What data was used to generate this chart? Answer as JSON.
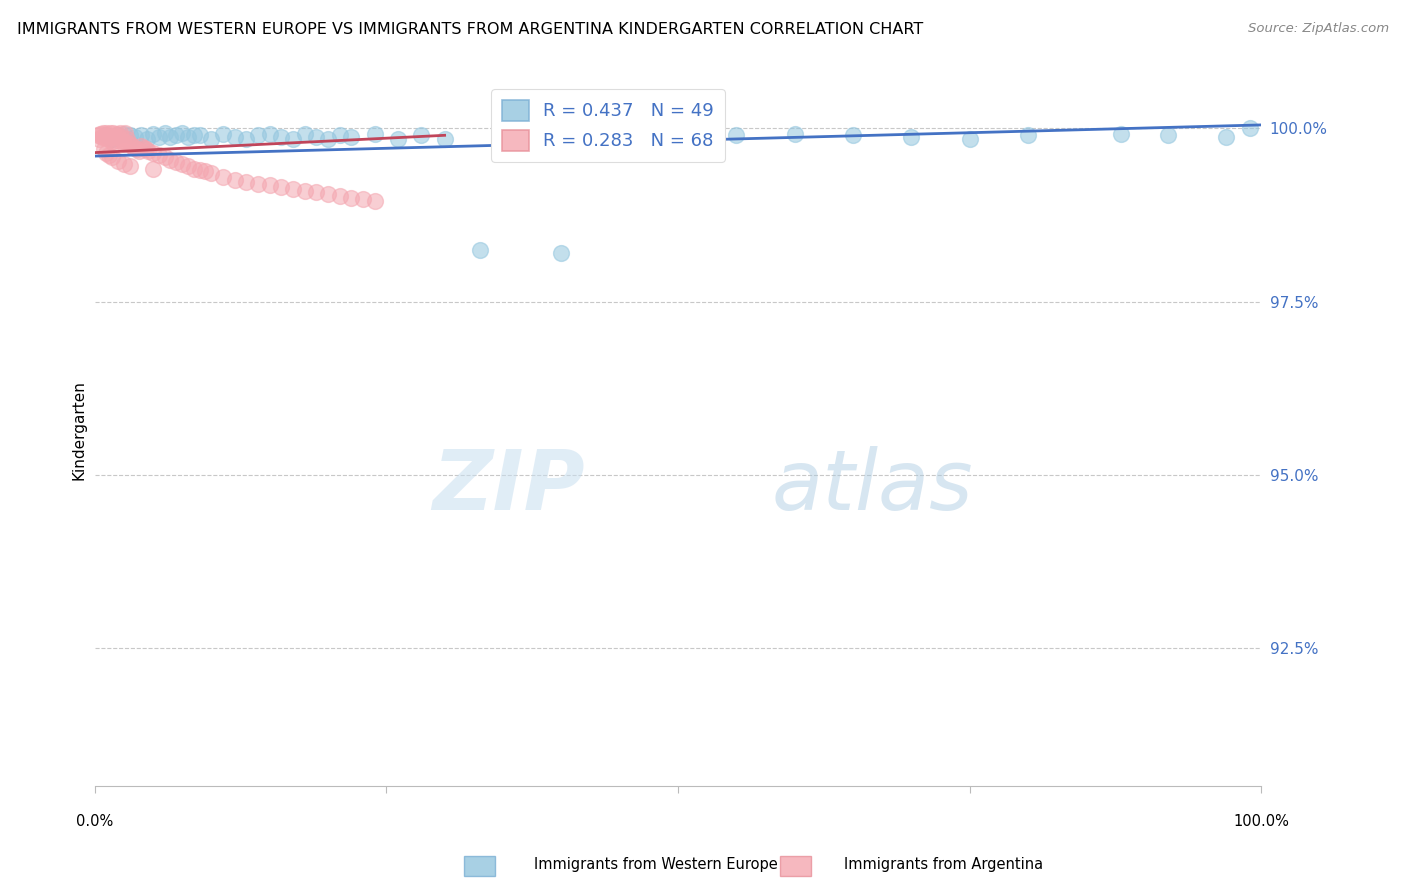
{
  "title": "IMMIGRANTS FROM WESTERN EUROPE VS IMMIGRANTS FROM ARGENTINA KINDERGARTEN CORRELATION CHART",
  "source": "Source: ZipAtlas.com",
  "ylabel": "Kindergarten",
  "ytick_values": [
    1.0,
    0.975,
    0.95,
    0.925
  ],
  "xlim": [
    0.0,
    1.0
  ],
  "ylim": [
    0.905,
    1.008
  ],
  "legend_blue_label": "Immigrants from Western Europe",
  "legend_pink_label": "Immigrants from Argentina",
  "R_blue": 0.437,
  "N_blue": 49,
  "R_pink": 0.283,
  "N_pink": 68,
  "blue_color": "#92c5de",
  "pink_color": "#f4a6b0",
  "line_blue": "#4472c4",
  "line_pink": "#c0455a",
  "ytick_color": "#4472c4",
  "blue_x": [
    0.01,
    0.015,
    0.02,
    0.025,
    0.03,
    0.035,
    0.04,
    0.045,
    0.05,
    0.055,
    0.06,
    0.065,
    0.07,
    0.075,
    0.08,
    0.085,
    0.09,
    0.1,
    0.11,
    0.12,
    0.13,
    0.14,
    0.15,
    0.16,
    0.17,
    0.18,
    0.19,
    0.2,
    0.21,
    0.22,
    0.24,
    0.26,
    0.28,
    0.3,
    0.33,
    0.36,
    0.4,
    0.44,
    0.48,
    0.55,
    0.6,
    0.65,
    0.7,
    0.75,
    0.8,
    0.88,
    0.92,
    0.97,
    0.99
  ],
  "blue_y": [
    0.999,
    0.9985,
    0.999,
    0.9992,
    0.999,
    0.9988,
    0.999,
    0.9985,
    0.9992,
    0.9988,
    0.9993,
    0.9987,
    0.999,
    0.9993,
    0.9988,
    0.9991,
    0.999,
    0.9985,
    0.9992,
    0.9988,
    0.9985,
    0.999,
    0.9992,
    0.9987,
    0.9985,
    0.9992,
    0.9988,
    0.9985,
    0.999,
    0.9988,
    0.9992,
    0.9985,
    0.999,
    0.9985,
    0.9825,
    0.9992,
    0.982,
    0.9992,
    0.9985,
    0.999,
    0.9992,
    0.999,
    0.9988,
    0.9985,
    0.999,
    0.9992,
    0.999,
    0.9988,
    1.0
  ],
  "pink_x": [
    0.003,
    0.004,
    0.005,
    0.006,
    0.007,
    0.008,
    0.009,
    0.01,
    0.011,
    0.012,
    0.013,
    0.014,
    0.015,
    0.016,
    0.017,
    0.018,
    0.019,
    0.02,
    0.021,
    0.022,
    0.023,
    0.024,
    0.025,
    0.026,
    0.027,
    0.028,
    0.03,
    0.032,
    0.034,
    0.036,
    0.038,
    0.04,
    0.042,
    0.044,
    0.046,
    0.05,
    0.055,
    0.06,
    0.065,
    0.07,
    0.075,
    0.08,
    0.085,
    0.09,
    0.095,
    0.1,
    0.11,
    0.12,
    0.13,
    0.14,
    0.15,
    0.16,
    0.17,
    0.18,
    0.19,
    0.2,
    0.21,
    0.22,
    0.23,
    0.24,
    0.008,
    0.01,
    0.012,
    0.015,
    0.02,
    0.025,
    0.03,
    0.05
  ],
  "pink_y": [
    0.999,
    0.9985,
    0.9992,
    0.9988,
    0.9993,
    0.9987,
    0.999,
    0.9993,
    0.9988,
    0.9985,
    0.9993,
    0.9988,
    0.998,
    0.9993,
    0.9988,
    0.9983,
    0.9992,
    0.9987,
    0.9982,
    0.9993,
    0.9988,
    0.9982,
    0.9978,
    0.9993,
    0.998,
    0.9985,
    0.9978,
    0.9975,
    0.9972,
    0.997,
    0.9968,
    0.9975,
    0.9972,
    0.997,
    0.9968,
    0.9965,
    0.9962,
    0.9958,
    0.9955,
    0.9952,
    0.9948,
    0.9945,
    0.9942,
    0.994,
    0.9938,
    0.9935,
    0.993,
    0.9925,
    0.9922,
    0.992,
    0.9918,
    0.9915,
    0.9912,
    0.991,
    0.9908,
    0.9905,
    0.9903,
    0.99,
    0.9898,
    0.9895,
    0.997,
    0.9965,
    0.9962,
    0.9958,
    0.9953,
    0.9948,
    0.9945,
    0.9942
  ],
  "blue_line_x": [
    0.0,
    1.0
  ],
  "blue_line_y": [
    0.996,
    1.0005
  ],
  "pink_line_x": [
    0.0,
    0.3
  ],
  "pink_line_y": [
    0.997,
    0.9995
  ]
}
